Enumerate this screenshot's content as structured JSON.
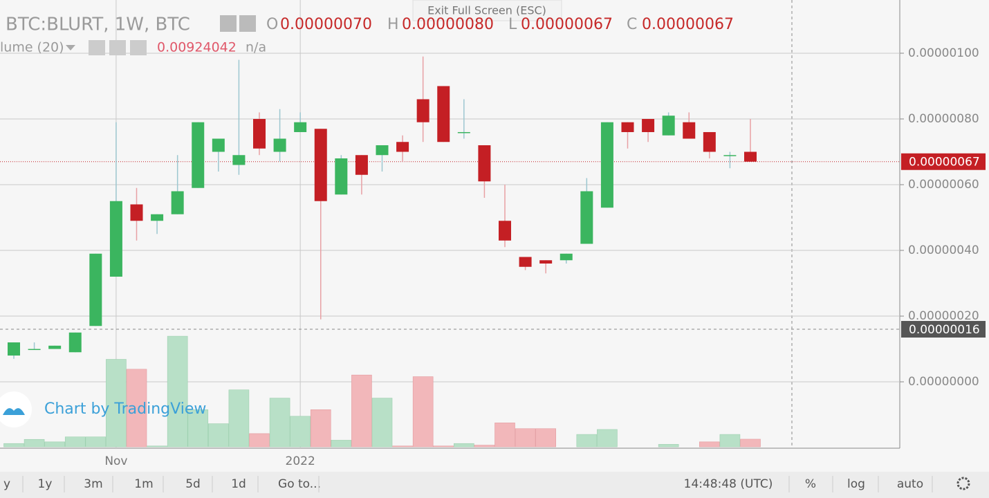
{
  "chart_data": {
    "type": "candlestick",
    "legend": {
      "symbol": "BTC:BLURT, 1W, BTC",
      "fields": [
        {
          "label": "O",
          "value": "0.00000070"
        },
        {
          "label": "H",
          "value": "0.00000080"
        },
        {
          "label": "L",
          "value": "0.00000067"
        },
        {
          "label": "C",
          "value": "0.00000067"
        }
      ]
    },
    "volume_legend": {
      "label": "lume (20)",
      "value": "0.00924042",
      "extra": "n/a"
    },
    "categories": [
      null,
      null,
      null,
      null,
      null,
      "Nov",
      null,
      null,
      null,
      null,
      null,
      null,
      null,
      null,
      "2022",
      null,
      null,
      null,
      null,
      null,
      null,
      null,
      null,
      null,
      null,
      null,
      null,
      null,
      null,
      null,
      null,
      null,
      null,
      null,
      null,
      null,
      null
    ],
    "open": [
      8e-08,
      1e-07,
      1e-07,
      9e-08,
      1.7e-07,
      3.2e-07,
      5.4e-07,
      4.9e-07,
      5.1e-07,
      5.9e-07,
      7e-07,
      6.6e-07,
      8e-07,
      7e-07,
      7.6e-07,
      7.7e-07,
      5.7e-07,
      6.9e-07,
      6.9e-07,
      7.3e-07,
      8.6e-07,
      9e-07,
      7.6e-07,
      7.2e-07,
      4.9e-07,
      3.8e-07,
      3.7e-07,
      3.7e-07,
      4.2e-07,
      5.3e-07,
      7.9e-07,
      8e-07,
      7.5e-07,
      7.9e-07,
      7.6e-07,
      6.9e-07,
      7e-07
    ],
    "high": [
      1.2e-07,
      1.2e-07,
      1.1e-07,
      1.5e-07,
      3.9e-07,
      7.9e-07,
      5.9e-07,
      5.1e-07,
      6.9e-07,
      7.9e-07,
      7.4e-07,
      9.8e-07,
      8.2e-07,
      8.3e-07,
      8.2e-07,
      7.7e-07,
      6.9e-07,
      6.9e-07,
      7.2e-07,
      7.5e-07,
      9.9e-07,
      9e-07,
      8.6e-07,
      7.2e-07,
      6e-07,
      3.8e-07,
      3.7e-07,
      3.9e-07,
      6.2e-07,
      7.9e-07,
      7.9e-07,
      8e-07,
      8.2e-07,
      8.2e-07,
      7.6e-07,
      7e-07,
      8e-07
    ],
    "low": [
      7e-08,
      1e-07,
      1e-07,
      9e-08,
      1.7e-07,
      3.2e-07,
      4.3e-07,
      4.5e-07,
      5.1e-07,
      5.9e-07,
      6.4e-07,
      6.3e-07,
      6.9e-07,
      6.7e-07,
      7.6e-07,
      1.9e-07,
      5.7e-07,
      5.7e-07,
      6.4e-07,
      6.7e-07,
      7.3e-07,
      7.3e-07,
      7.4e-07,
      5.6e-07,
      4.1e-07,
      3.4e-07,
      3.3e-07,
      3.6e-07,
      4.2e-07,
      5.3e-07,
      7.1e-07,
      7.3e-07,
      7.5e-07,
      7.4e-07,
      6.8e-07,
      6.5e-07,
      6.7e-07
    ],
    "close": [
      1.2e-07,
      1e-07,
      1.1e-07,
      1.5e-07,
      3.9e-07,
      5.5e-07,
      4.9e-07,
      5.1e-07,
      5.8e-07,
      7.9e-07,
      7.4e-07,
      6.9e-07,
      7.1e-07,
      7.4e-07,
      7.9e-07,
      5.5e-07,
      6.8e-07,
      6.3e-07,
      7.2e-07,
      7e-07,
      7.9e-07,
      7.3e-07,
      7.6e-07,
      6.1e-07,
      4.3e-07,
      3.5e-07,
      3.6e-07,
      3.9e-07,
      5.8e-07,
      7.9e-07,
      7.6e-07,
      7.6e-07,
      8.1e-07,
      7.4e-07,
      7e-07,
      6.9e-07,
      6.7e-07
    ],
    "volume": [
      0.004,
      0.009,
      0.006,
      0.012,
      0.012,
      0.106,
      0.094,
      0.001,
      0.134,
      0.045,
      0.028,
      0.069,
      0.016,
      0.059,
      0.037,
      0.045,
      0.008,
      0.087,
      0.059,
      0.001,
      0.085,
      0.001,
      0.004,
      0.002,
      0.029,
      0.022,
      0.022,
      0,
      0.015,
      0.021,
      0,
      0,
      0.003,
      0,
      0.006,
      0.015,
      0.00924042
    ],
    "volume_ylim": [
      0,
      0.15
    ],
    "up_color": "#3bb55f",
    "down_color": "#c41f24",
    "volume_up_color": "#b8e0c7",
    "volume_down_color": "#f2b7ba",
    "ylim": [
      -2.02e-07,
      1.162e-06
    ],
    "yticks": [
      {
        "value": 0,
        "label": "0.00000000"
      },
      {
        "value": 2e-07,
        "label": "0.00000020"
      },
      {
        "value": 4e-07,
        "label": "0.00000040"
      },
      {
        "value": 6e-07,
        "label": "0.00000060"
      },
      {
        "value": 8e-07,
        "label": "0.00000080"
      },
      {
        "value": 1e-06,
        "label": "0.00000100"
      }
    ],
    "last_price": {
      "value": 6.7e-07,
      "label": "0.00000067"
    },
    "crosshair": {
      "value": 1.6e-07,
      "label": "0.00000016"
    },
    "grid": true
  },
  "ui": {
    "exit_fullscreen": "Exit Full Screen (ESC)",
    "branding": "Chart by TradingView",
    "toolbar_left": [
      "y",
      "1y",
      "3m",
      "1m",
      "5d",
      "1d",
      "Go to..."
    ],
    "toolbar_right": [
      "14:48:48 (UTC)",
      "%",
      "log",
      "auto"
    ]
  }
}
